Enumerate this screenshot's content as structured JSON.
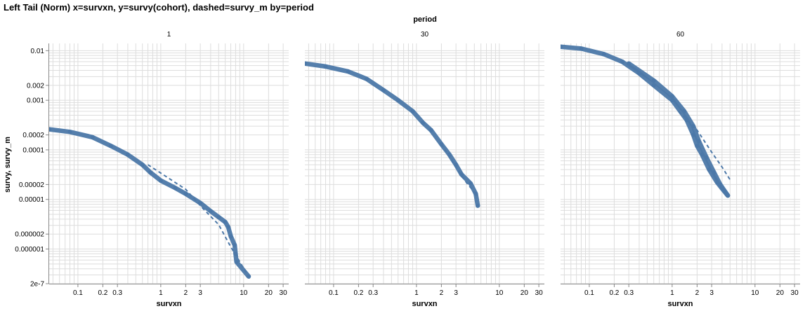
{
  "title": "Left Tail (Norm) x=survxn, y=survy(cohort), dashed=survy_m by=period",
  "facet_title": "period",
  "chart_data": {
    "type": "line",
    "xlabel": "survxn",
    "ylabel": "survy, survy_m",
    "x_scale": "log",
    "y_scale": "log",
    "xlim": [
      0.045,
      35
    ],
    "ylim": [
      2e-07,
      0.014
    ],
    "x_ticks": [
      {
        "v": 0.1,
        "label": "0.1"
      },
      {
        "v": 0.2,
        "label": "0.2"
      },
      {
        "v": 0.3,
        "label": "0.3"
      },
      {
        "v": 1,
        "label": "1"
      },
      {
        "v": 2,
        "label": "2"
      },
      {
        "v": 3,
        "label": "3"
      },
      {
        "v": 10,
        "label": "10"
      },
      {
        "v": 20,
        "label": "20"
      },
      {
        "v": 30,
        "label": "30"
      }
    ],
    "y_ticks": [
      {
        "v": 2e-07,
        "label": "2e-7"
      },
      {
        "v": 1e-06,
        "label": "0.000001"
      },
      {
        "v": 2e-06,
        "label": "0.000002"
      },
      {
        "v": 1e-05,
        "label": "0.00001"
      },
      {
        "v": 2e-05,
        "label": "0.00002"
      },
      {
        "v": 0.0001,
        "label": "0.0001"
      },
      {
        "v": 0.0002,
        "label": "0.0002"
      },
      {
        "v": 0.001,
        "label": "0.001"
      },
      {
        "v": 0.002,
        "label": "0.002"
      },
      {
        "v": 0.01,
        "label": "0.01"
      }
    ],
    "color": "#4c78a8",
    "panels": [
      {
        "label": "1",
        "series": [
          {
            "style": "solid",
            "points": [
              [
                0.045,
                0.00026
              ],
              [
                0.08,
                0.00023
              ],
              [
                0.15,
                0.00018
              ],
              [
                0.25,
                0.00012
              ],
              [
                0.4,
                8e-05
              ],
              [
                0.6,
                5e-05
              ],
              [
                0.75,
                3.5e-05
              ],
              [
                1,
                2.4e-05
              ],
              [
                1.5,
                1.7e-05
              ],
              [
                2,
                1.3e-05
              ],
              [
                3,
                8.5e-06
              ],
              [
                4,
                5.8e-06
              ],
              [
                5,
                4.4e-06
              ],
              [
                6,
                3.5e-06
              ],
              [
                6.5,
                2.8e-06
              ],
              [
                7,
                1.8e-06
              ],
              [
                7.8,
                1.2e-06
              ],
              [
                8,
                8e-07
              ],
              [
                8.2,
                5.5e-07
              ],
              [
                11.5,
                2.8e-07
              ]
            ]
          },
          {
            "style": "dashed",
            "points": [
              [
                0.7,
                5e-05
              ],
              [
                1,
                3.4e-05
              ],
              [
                2,
                1.6e-05
              ],
              [
                3,
                7.5e-06
              ],
              [
                5,
                3.1e-06
              ],
              [
                7,
                1.1e-06
              ],
              [
                9,
                5.5e-07
              ],
              [
                11.5,
                2.8e-07
              ]
            ]
          }
        ]
      },
      {
        "label": "30",
        "series": [
          {
            "style": "solid",
            "points": [
              [
                0.045,
                0.0055
              ],
              [
                0.08,
                0.0048
              ],
              [
                0.15,
                0.0038
              ],
              [
                0.25,
                0.0027
              ],
              [
                0.4,
                0.0016
              ],
              [
                0.6,
                0.001
              ],
              [
                0.9,
                0.0006
              ],
              [
                1.2,
                0.00035
              ],
              [
                1.5,
                0.00025
              ],
              [
                2,
                0.00013
              ],
              [
                2.5,
                8e-05
              ],
              [
                3,
                5e-05
              ],
              [
                3.5,
                3.2e-05
              ],
              [
                4.5,
                2.1e-05
              ],
              [
                5.2,
                1.3e-05
              ],
              [
                5.5,
                7.5e-06
              ]
            ]
          },
          {
            "style": "dashed",
            "points": [
              [
                2,
                0.00013
              ],
              [
                3,
                4.5e-05
              ],
              [
                4,
                2.2e-05
              ],
              [
                5,
                1.4e-05
              ],
              [
                5.3,
                1.2e-05
              ]
            ]
          }
        ]
      },
      {
        "label": "60",
        "series": [
          {
            "style": "solid",
            "points": [
              [
                0.045,
                0.012
              ],
              [
                0.08,
                0.011
              ],
              [
                0.15,
                0.0085
              ],
              [
                0.25,
                0.006
              ],
              [
                0.4,
                0.0035
              ],
              [
                0.6,
                0.002
              ],
              [
                1,
                0.001
              ],
              [
                1.5,
                0.0004
              ],
              [
                1.8,
                0.0002
              ],
              [
                2,
                0.00012
              ],
              [
                2.3,
                8e-05
              ],
              [
                2.8,
                4e-05
              ],
              [
                3.5,
                2.2e-05
              ],
              [
                4.2,
                1.5e-05
              ],
              [
                4.7,
                1.2e-05
              ]
            ]
          },
          {
            "style": "solid",
            "points": [
              [
                0.3,
                0.0055
              ],
              [
                0.6,
                0.0025
              ],
              [
                1,
                0.0012
              ],
              [
                1.4,
                0.0006
              ],
              [
                1.8,
                0.0003
              ],
              [
                2.1,
                0.00015
              ],
              [
                2.6,
                7e-05
              ],
              [
                3.2,
                3.5e-05
              ],
              [
                3.8,
                2e-05
              ],
              [
                4.7,
                1.2e-05
              ]
            ]
          },
          {
            "style": "dashed",
            "points": [
              [
                1.2,
                0.0006
              ],
              [
                2,
                0.00025
              ],
              [
                3,
                9e-05
              ],
              [
                4,
                4.5e-05
              ],
              [
                5,
                2.5e-05
              ]
            ]
          }
        ]
      }
    ]
  }
}
